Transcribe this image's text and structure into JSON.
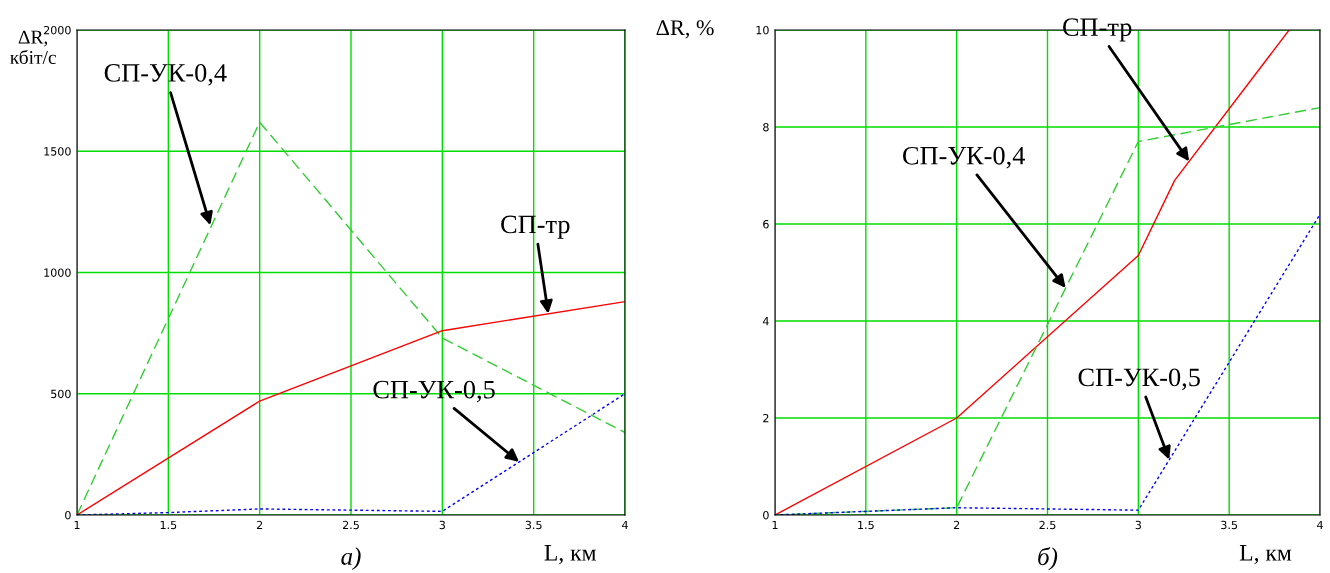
{
  "chart_data": [
    {
      "type": "line",
      "xlabel": "L, км",
      "ylabel": "ΔR,\nкбіт/с",
      "xlim": [
        1,
        4
      ],
      "ylim": [
        0,
        2000
      ],
      "xticks": [
        1,
        1.5,
        2,
        2.5,
        3,
        3.5,
        4
      ],
      "yticks": [
        0,
        500,
        1000,
        1500,
        2000
      ],
      "grid": true,
      "legend": false,
      "marker": "none",
      "series": [
        {
          "color": "#33cc33",
          "line_style": "dashed",
          "x": [
            1,
            2,
            3,
            4
          ],
          "values": [
            0,
            1620,
            730,
            340
          ]
        },
        {
          "color": "#ff0000",
          "line_style": "solid",
          "x": [
            1,
            2,
            3,
            4
          ],
          "values": [
            0,
            470,
            760,
            880
          ]
        },
        {
          "color": "#0000ff",
          "line_style": "dotted",
          "x": [
            1,
            1.5,
            2,
            3,
            4
          ],
          "values": [
            0,
            10,
            25,
            15,
            500
          ]
        }
      ],
      "annotations": [
        {
          "text": "СП-УК-0,4",
          "x": 1.73,
          "y": 1195
        },
        {
          "text": "СП-тр",
          "x": 3.58,
          "y": 830
        },
        {
          "text": "СП-УК-0,5",
          "x": 3.42,
          "y": 219
        },
        "а)"
      ]
    },
    {
      "type": "line",
      "xlabel": "L, км",
      "ylabel": "ΔR, %",
      "xlim": [
        1,
        4
      ],
      "ylim": [
        0,
        10
      ],
      "xticks": [
        1,
        1.5,
        2,
        2.5,
        3,
        3.5,
        4
      ],
      "yticks": [
        0,
        2,
        4,
        6,
        8,
        10
      ],
      "grid": true,
      "legend": false,
      "marker": "none",
      "series": [
        {
          "color": "#ff0000",
          "line_style": "solid",
          "x": [
            1,
            2,
            3,
            3.2,
            3.83
          ],
          "values": [
            0,
            2,
            5.35,
            6.9,
            10
          ]
        },
        {
          "color": "#33cc33",
          "line_style": "dashed",
          "x": [
            1,
            2,
            3,
            4
          ],
          "values": [
            0,
            0.15,
            7.7,
            8.4
          ]
        },
        {
          "color": "#0000ff",
          "line_style": "dotted",
          "x": [
            1,
            2,
            3,
            4
          ],
          "values": [
            0,
            0.15,
            0.1,
            6.2
          ]
        }
      ],
      "annotations": [
        {
          "text": "СП-тр",
          "x": 3.28,
          "y": 7.29
        },
        {
          "text": "СП-УК-0,4",
          "x": 2.6,
          "y": 4.68
        },
        {
          "text": "СП-УК-0,5",
          "x": 3.17,
          "y": 1.14
        },
        "б)"
      ]
    }
  ]
}
